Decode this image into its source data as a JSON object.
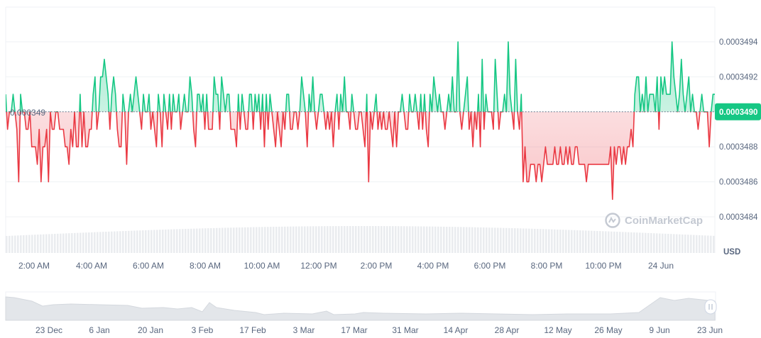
{
  "chart_data": {
    "type": "area",
    "title": "",
    "currency": "USD",
    "baseline_label": "0.000349",
    "baseline_value": 0.000349,
    "current_price_label": "0.0003490",
    "current_price": 0.000349,
    "watermark": "CoinMarketCap",
    "y_ticks": [
      "0.0003494",
      "0.0003492",
      "0.0003490",
      "0.0003488",
      "0.0003486",
      "0.0003484"
    ],
    "y_tick_values": [
      0.0003494,
      0.0003492,
      0.000349,
      0.0003488,
      0.0003486,
      0.0003484
    ],
    "ylim": [
      0.00034832,
      0.0003496
    ],
    "x_ticks": [
      "2:00 AM",
      "4:00 AM",
      "6:00 AM",
      "8:00 AM",
      "10:00 AM",
      "12:00 PM",
      "2:00 PM",
      "4:00 PM",
      "6:00 PM",
      "8:00 PM",
      "10:00 PM",
      "24 Jun"
    ],
    "range_ticks": [
      "23 Dec",
      "6 Jan",
      "20 Jan",
      "3 Feb",
      "17 Feb",
      "3 Mar",
      "17 Mar",
      "31 Mar",
      "14 Apr",
      "28 Apr",
      "12 May",
      "26 May",
      "9 Jun",
      "23 Jun"
    ],
    "colors": {
      "up": "#16c784",
      "down": "#ea3943",
      "label_bg": "#16c784",
      "grid": "#eff2f5",
      "volume": "#eaecef",
      "navigator": "#e3e6ea"
    },
    "series": [
      {
        "values": [
          0.0003491,
          0.0003489,
          0.000349,
          0.000349,
          0.0003491,
          0.000349,
          0.0003489,
          0.0003486,
          0.0003491,
          0.000349,
          0.000349,
          0.0003489,
          0.0003489,
          0.000349,
          0.0003488,
          0.0003488,
          0.0003488,
          0.0003487,
          0.0003489,
          0.0003486,
          0.0003488,
          0.0003488,
          0.0003489,
          0.0003486,
          0.000349,
          0.0003489,
          0.0003489,
          0.000349,
          0.000349,
          0.0003489,
          0.0003489,
          0.0003489,
          0.0003488,
          0.0003488,
          0.0003487,
          0.0003489,
          0.0003488,
          0.000349,
          0.0003488,
          0.0003488,
          0.0003491,
          0.0003488,
          0.000349,
          0.0003488,
          0.0003488,
          0.0003489,
          0.0003489,
          0.0003491,
          0.0003492,
          0.0003489,
          0.000349,
          0.0003492,
          0.0003492,
          0.0003493,
          0.0003492,
          0.0003491,
          0.0003489,
          0.0003491,
          0.0003492,
          0.0003491,
          0.0003489,
          0.0003488,
          0.0003488,
          0.0003491,
          0.000349,
          0.0003487,
          0.000349,
          0.0003491,
          0.000349,
          0.0003491,
          0.0003492,
          0.0003491,
          0.000349,
          0.0003489,
          0.0003491,
          0.000349,
          0.000349,
          0.0003491,
          0.0003489,
          0.000349,
          0.0003489,
          0.0003488,
          0.0003491,
          0.000349,
          0.0003488,
          0.0003491,
          0.000349,
          0.0003489,
          0.0003491,
          0.0003489,
          0.0003491,
          0.000349,
          0.000349,
          0.0003491,
          0.0003489,
          0.000349,
          0.0003491,
          0.000349,
          0.000349,
          0.0003492,
          0.0003491,
          0.0003489,
          0.0003488,
          0.0003491,
          0.0003491,
          0.000349,
          0.0003491,
          0.0003489,
          0.0003491,
          0.0003489,
          0.0003489,
          0.0003489,
          0.0003492,
          0.0003491,
          0.0003491,
          0.0003489,
          0.0003492,
          0.0003491,
          0.000349,
          0.0003491,
          0.0003491,
          0.0003489,
          0.0003489,
          0.0003489,
          0.0003488,
          0.0003491,
          0.0003489,
          0.0003491,
          0.000349,
          0.0003489,
          0.0003489,
          0.0003491,
          0.0003491,
          0.0003489,
          0.0003491,
          0.000349,
          0.0003491,
          0.0003489,
          0.0003491,
          0.0003488,
          0.0003491,
          0.0003489,
          0.0003491,
          0.000349,
          0.0003489,
          0.0003488,
          0.000349,
          0.0003489,
          0.0003488,
          0.000349,
          0.0003489,
          0.0003491,
          0.0003491,
          0.0003489,
          0.0003489,
          0.000349,
          0.000349,
          0.0003489,
          0.000349,
          0.0003492,
          0.0003491,
          0.000349,
          0.0003488,
          0.0003491,
          0.000349,
          0.0003492,
          0.000349,
          0.0003489,
          0.000349,
          0.0003491,
          0.0003491,
          0.000349,
          0.0003489,
          0.000349,
          0.0003489,
          0.000349,
          0.0003488,
          0.000349,
          0.0003491,
          0.0003489,
          0.0003491,
          0.000349,
          0.0003492,
          0.000349,
          0.000349,
          0.0003489,
          0.0003491,
          0.000349,
          0.0003489,
          0.0003489,
          0.000349,
          0.000349,
          0.0003489,
          0.0003488,
          0.0003491,
          0.0003486,
          0.000349,
          0.0003489,
          0.000349,
          0.0003491,
          0.0003489,
          0.000349,
          0.0003489,
          0.000349,
          0.0003489,
          0.0003489,
          0.000349,
          0.0003489,
          0.0003488,
          0.000349,
          0.0003488,
          0.000349,
          0.000349,
          0.0003491,
          0.000349,
          0.0003489,
          0.0003489,
          0.0003491,
          0.000349,
          0.000349,
          0.0003491,
          0.000349,
          0.0003489,
          0.0003491,
          0.0003489,
          0.0003491,
          0.0003489,
          0.0003488,
          0.0003491,
          0.000349,
          0.0003492,
          0.0003491,
          0.000349,
          0.0003491,
          0.000349,
          0.000349,
          0.0003489,
          0.000349,
          0.0003491,
          0.000349,
          0.0003492,
          0.000349,
          0.000349,
          0.0003494,
          0.000349,
          0.0003489,
          0.000349,
          0.0003491,
          0.0003492,
          0.0003489,
          0.000349,
          0.0003488,
          0.000349,
          0.0003489,
          0.0003491,
          0.0003488,
          0.0003493,
          0.0003489,
          0.0003491,
          0.000349,
          0.000349,
          0.000349,
          0.0003489,
          0.0003493,
          0.0003491,
          0.0003489,
          0.000349,
          0.000349,
          0.0003491,
          0.000349,
          0.0003494,
          0.0003491,
          0.000349,
          0.0003489,
          0.0003493,
          0.000349,
          0.0003489,
          0.0003491,
          0.0003486,
          0.0003488,
          0.0003486,
          0.0003486,
          0.0003487,
          0.0003487,
          0.0003487,
          0.0003486,
          0.0003487,
          0.0003487,
          0.0003486,
          0.0003487,
          0.0003488,
          0.0003487,
          0.0003487,
          0.0003487,
          0.0003487,
          0.0003488,
          0.0003487,
          0.0003487,
          0.0003488,
          0.0003487,
          0.0003487,
          0.0003488,
          0.0003487,
          0.0003488,
          0.0003487,
          0.0003487,
          0.0003488,
          0.0003488,
          0.0003487,
          0.0003487,
          0.0003487,
          0.0003487,
          0.0003486,
          0.0003487,
          0.0003487,
          0.0003487,
          0.0003487,
          0.0003487,
          0.0003487,
          0.0003487,
          0.0003487,
          0.0003487,
          0.0003487,
          0.0003487,
          0.0003487,
          0.0003488,
          0.0003485,
          0.0003488,
          0.0003487,
          0.0003488,
          0.0003488,
          0.0003487,
          0.0003488,
          0.0003487,
          0.0003488,
          0.0003488,
          0.0003489,
          0.0003488,
          0.0003491,
          0.0003492,
          0.0003492,
          0.000349,
          0.0003491,
          0.000349,
          0.0003492,
          0.000349,
          0.0003491,
          0.0003491,
          0.0003491,
          0.000349,
          0.0003492,
          0.0003489,
          0.0003492,
          0.0003491,
          0.0003492,
          0.0003491,
          0.0003491,
          0.0003491,
          0.0003494,
          0.0003492,
          0.0003491,
          0.000349,
          0.0003491,
          0.0003493,
          0.0003491,
          0.000349,
          0.0003491,
          0.0003492,
          0.000349,
          0.0003491,
          0.000349,
          0.000349,
          0.0003489,
          0.000349,
          0.0003491,
          0.000349,
          0.000349,
          0.000349,
          0.0003488,
          0.000349,
          0.0003491,
          0.0003491
        ]
      }
    ]
  }
}
